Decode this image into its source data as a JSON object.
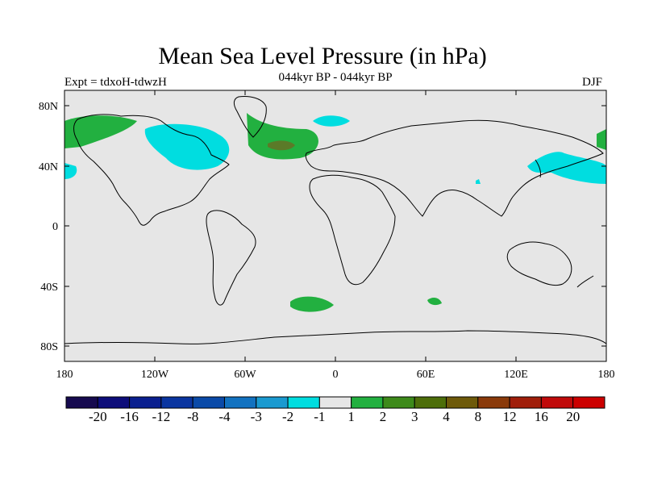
{
  "title": "Mean Sea Level Pressure (in hPa)",
  "subtitle": "044kyr BP - 044kyr BP",
  "left_label": "Expt = tdxoH-tdwzH",
  "right_label": "DJF",
  "axes": {
    "lat_ticks": [
      "80N",
      "40N",
      "0",
      "40S",
      "80S"
    ],
    "lon_ticks": [
      "180",
      "120W",
      "60W",
      "0",
      "60E",
      "120E",
      "180"
    ]
  },
  "colorbar": {
    "colors": [
      "#160a4f",
      "#0d0d7a",
      "#0a1f8f",
      "#0a35a0",
      "#0a4aa8",
      "#1272c0",
      "#1a9ad0",
      "#00dde0",
      "#e6e6e6",
      "#22b040",
      "#3d8a1a",
      "#4d6e0a",
      "#6e5a0a",
      "#8a3a0a",
      "#a01e0a",
      "#c00a0a",
      "#cc0000"
    ],
    "labels": [
      "-20",
      "-16",
      "-12",
      "-8",
      "-4",
      "-3",
      "-2",
      "-1",
      "1",
      "2",
      "3",
      "4",
      "8",
      "12",
      "16",
      "20"
    ]
  },
  "map_colors": {
    "ocean_background": "#e6e6e6",
    "positive_1_2": "#22b040",
    "positive_2_3": "#5b7a28",
    "negative_1_2": "#00dde0",
    "coast": "#000000"
  }
}
